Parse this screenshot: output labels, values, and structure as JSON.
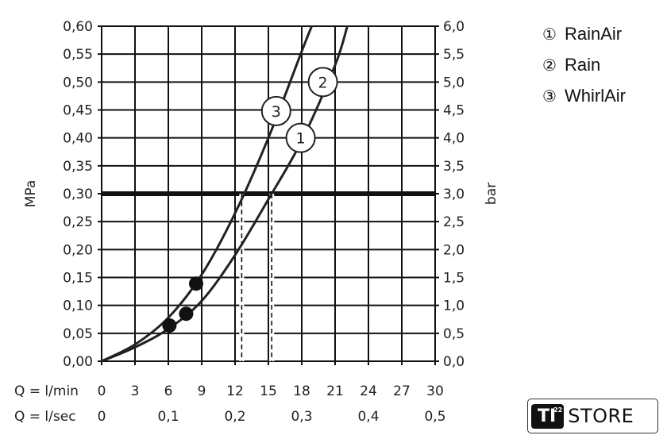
{
  "chart_data": {
    "type": "line",
    "xlabel_rows": [
      {
        "label": "Q = l/min",
        "ticks": [
          "0",
          "3",
          "6",
          "9",
          "12",
          "15",
          "18",
          "21",
          "24",
          "27",
          "30"
        ],
        "values": [
          0,
          3,
          6,
          9,
          12,
          15,
          18,
          21,
          24,
          27,
          30
        ]
      },
      {
        "label": "Q = l/sec",
        "ticks": [
          "0",
          "0,1",
          "0,2",
          "0,3",
          "0,4",
          "0,5"
        ],
        "values": [
          0,
          6,
          12,
          18,
          24,
          30
        ]
      }
    ],
    "ylabel_left": "MPa",
    "ylabel_right": "bar",
    "xlim": [
      0,
      30
    ],
    "ylim": [
      0,
      0.6
    ],
    "yticks_left": [
      "0,00",
      "0,05",
      "0,10",
      "0,15",
      "0,20",
      "0,25",
      "0,30",
      "0,35",
      "0,40",
      "0,45",
      "0,50",
      "0,55",
      "0,60"
    ],
    "yticks_right": [
      "0,0",
      "0,5",
      "1,0",
      "1,5",
      "2,0",
      "2,5",
      "3,0",
      "3,5",
      "4,0",
      "4,5",
      "5,0",
      "5,5",
      "6,0"
    ],
    "grid": true,
    "reference_line_y": 0.3,
    "dashed_x": [
      12.6,
      15.3
    ],
    "series": [
      {
        "label_marks": [
          "3"
        ],
        "x": [
          0,
          3,
          6,
          9,
          12,
          15,
          18,
          18.9
        ],
        "y": [
          0,
          0.03,
          0.078,
          0.155,
          0.265,
          0.4,
          0.555,
          0.6
        ]
      },
      {
        "label_marks": [
          "1",
          "2"
        ],
        "x": [
          0,
          3,
          6,
          9,
          12,
          15,
          18,
          21,
          22.1
        ],
        "y": [
          0,
          0.025,
          0.058,
          0.108,
          0.19,
          0.29,
          0.395,
          0.53,
          0.6
        ]
      }
    ],
    "markers": [
      {
        "x": 6.1,
        "y": 0.064
      },
      {
        "x": 7.6,
        "y": 0.085
      },
      {
        "x": 8.5,
        "y": 0.139
      }
    ],
    "curve_labels": [
      {
        "text": "3",
        "x": 15.7,
        "y": 0.448
      },
      {
        "text": "2",
        "x": 19.9,
        "y": 0.5
      },
      {
        "text": "1",
        "x": 17.9,
        "y": 0.4
      }
    ],
    "legend": {
      "placement": "top-right",
      "entries": [
        {
          "symbol": "①",
          "name": "RainAir"
        },
        {
          "symbol": "②",
          "name": "Rain"
        },
        {
          "symbol": "③",
          "name": "WhirlAir"
        }
      ]
    }
  },
  "logo": {
    "text_ti": "TI",
    "sup": "22",
    "text_store": "STORE"
  }
}
